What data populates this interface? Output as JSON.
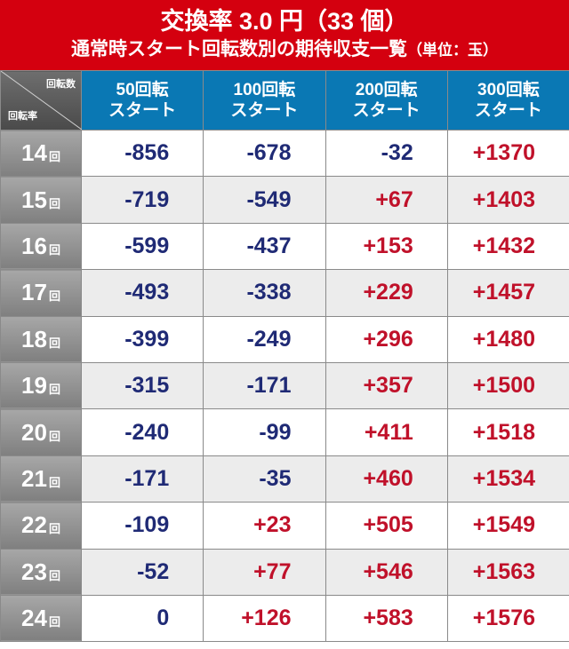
{
  "title": {
    "main": "交換率 3.0 円（33 個）",
    "sub": "通常時スタート回転数別の期待収支一覧",
    "unit": "（単位：玉）"
  },
  "corner": {
    "top": "回転数",
    "bottom": "回転率"
  },
  "columns": [
    {
      "line1": "50回転",
      "line2": "スタート"
    },
    {
      "line1": "100回転",
      "line2": "スタート"
    },
    {
      "line1": "200回転",
      "line2": "スタート"
    },
    {
      "line1": "300回転",
      "line2": "スタート"
    }
  ],
  "row_unit": "回",
  "rows": [
    {
      "rate": "14",
      "values": [
        "-856",
        "-678",
        "-32",
        "+1370"
      ]
    },
    {
      "rate": "15",
      "values": [
        "-719",
        "-549",
        "+67",
        "+1403"
      ]
    },
    {
      "rate": "16",
      "values": [
        "-599",
        "-437",
        "+153",
        "+1432"
      ]
    },
    {
      "rate": "17",
      "values": [
        "-493",
        "-338",
        "+229",
        "+1457"
      ]
    },
    {
      "rate": "18",
      "values": [
        "-399",
        "-249",
        "+296",
        "+1480"
      ]
    },
    {
      "rate": "19",
      "values": [
        "-315",
        "-171",
        "+357",
        "+1500"
      ]
    },
    {
      "rate": "20",
      "values": [
        "-240",
        "-99",
        "+411",
        "+1518"
      ]
    },
    {
      "rate": "21",
      "values": [
        "-171",
        "-35",
        "+460",
        "+1534"
      ]
    },
    {
      "rate": "22",
      "values": [
        "-109",
        "+23",
        "+505",
        "+1549"
      ]
    },
    {
      "rate": "23",
      "values": [
        "-52",
        "+77",
        "+546",
        "+1563"
      ]
    },
    {
      "rate": "24",
      "values": [
        "0",
        "+126",
        "+583",
        "+1576"
      ]
    }
  ],
  "colors": {
    "header_red": "#d4000f",
    "col_blue": "#0a78b4",
    "negative": "#1f2a75",
    "positive": "#c0112a"
  }
}
